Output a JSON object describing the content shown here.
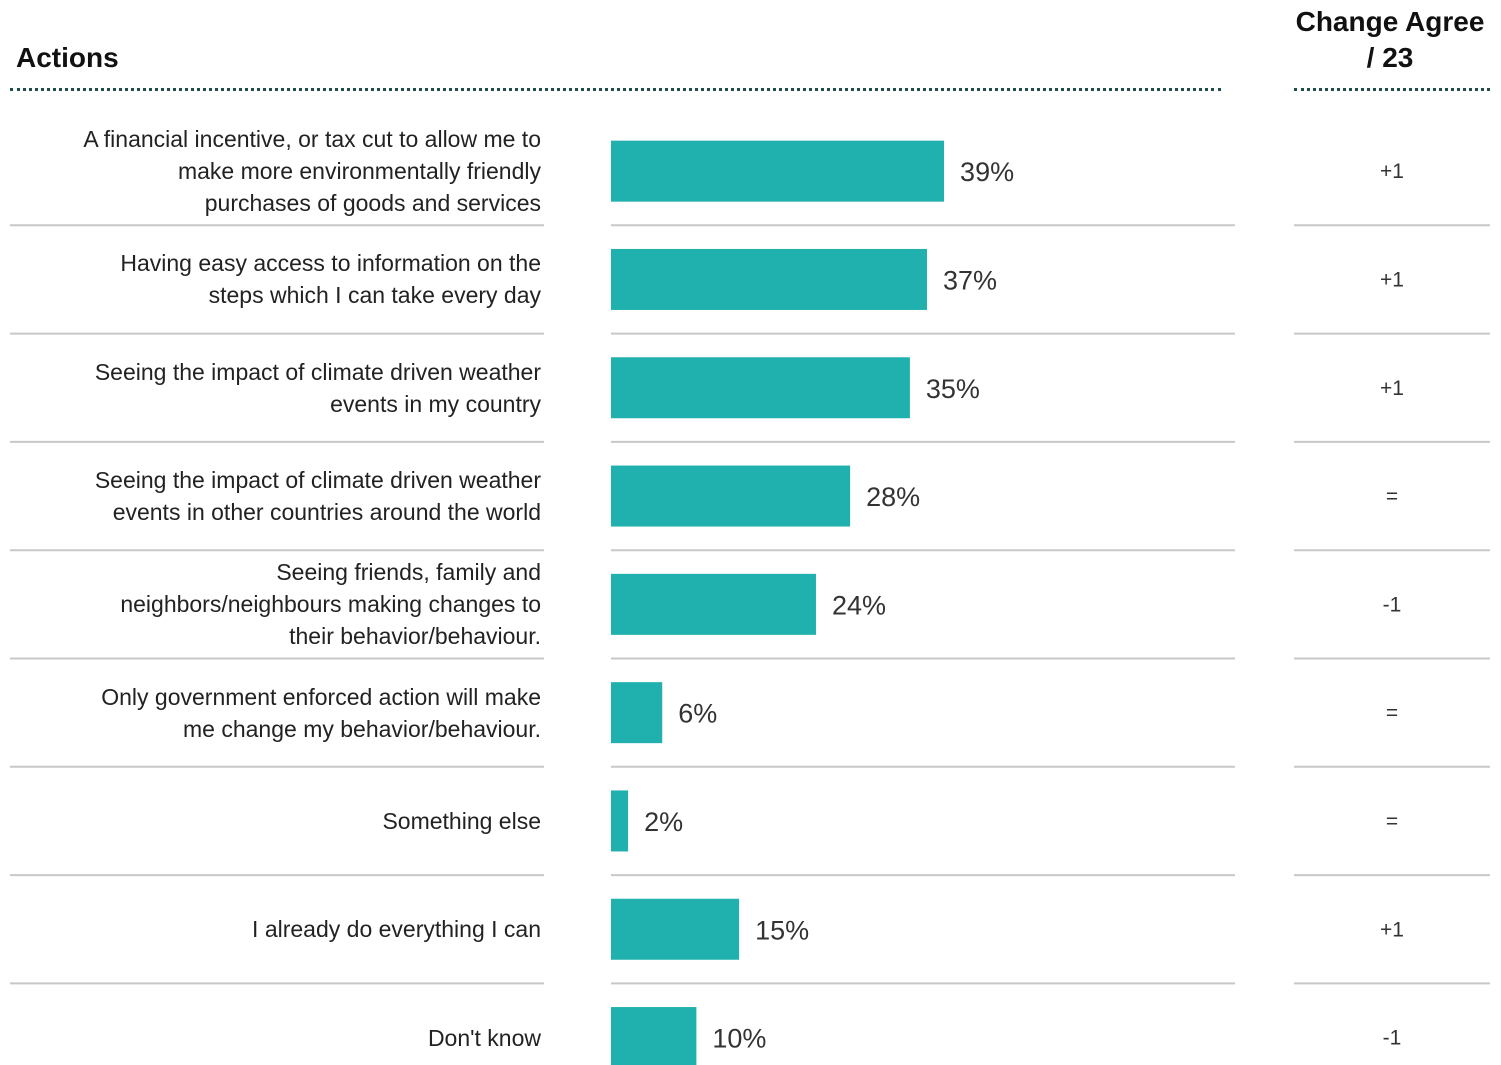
{
  "headers": {
    "actions": "Actions",
    "change_line1": "Change Agree",
    "change_line2": "/ 23"
  },
  "colors": {
    "bar": "#20b0ad",
    "divider": "#c8c8c8",
    "dotted_rule": "#1e4d4c",
    "text": "#222222"
  },
  "chart_data": {
    "type": "bar",
    "orientation": "horizontal",
    "xlim": [
      0,
      39
    ],
    "categories": [
      "A financial incentive, or tax cut to allow me to make more environmentally friendly purchases of goods and services",
      "Having easy access to information on the steps which I can take every day",
      "Seeing the impact of climate driven weather events in my country",
      "Seeing the impact of climate driven weather events in other countries around the world",
      "Seeing friends, family and neighbors/neighbours making changes to their behavior/behaviour.",
      "Only government enforced action will make me change my behavior/behaviour.",
      "Something else",
      "I already do everything I can",
      "Don't know"
    ],
    "label_lines": [
      [
        "A financial incentive, or tax cut to allow me to",
        "make more environmentally friendly",
        "purchases of goods and services"
      ],
      [
        "Having easy access to information on the",
        "steps which I can take every day"
      ],
      [
        "Seeing the impact of climate driven weather",
        "events in my country"
      ],
      [
        "Seeing the impact of climate driven weather",
        "events in other countries around the world"
      ],
      [
        "Seeing friends, family and",
        "neighbors/neighbours making changes to",
        "their behavior/behaviour."
      ],
      [
        "Only government enforced action will make",
        "me change my behavior/behaviour."
      ],
      [
        "Something else"
      ],
      [
        "I already do everything I can"
      ],
      [
        "Don't know"
      ]
    ],
    "values": [
      39,
      37,
      35,
      28,
      24,
      6,
      2,
      15,
      10
    ],
    "value_labels": [
      "39%",
      "37%",
      "35%",
      "28%",
      "24%",
      "6%",
      "2%",
      "15%",
      "10%"
    ],
    "change": [
      "+1",
      "+1",
      "+1",
      "=",
      "-1",
      "=",
      "=",
      "+1",
      "-1"
    ]
  }
}
